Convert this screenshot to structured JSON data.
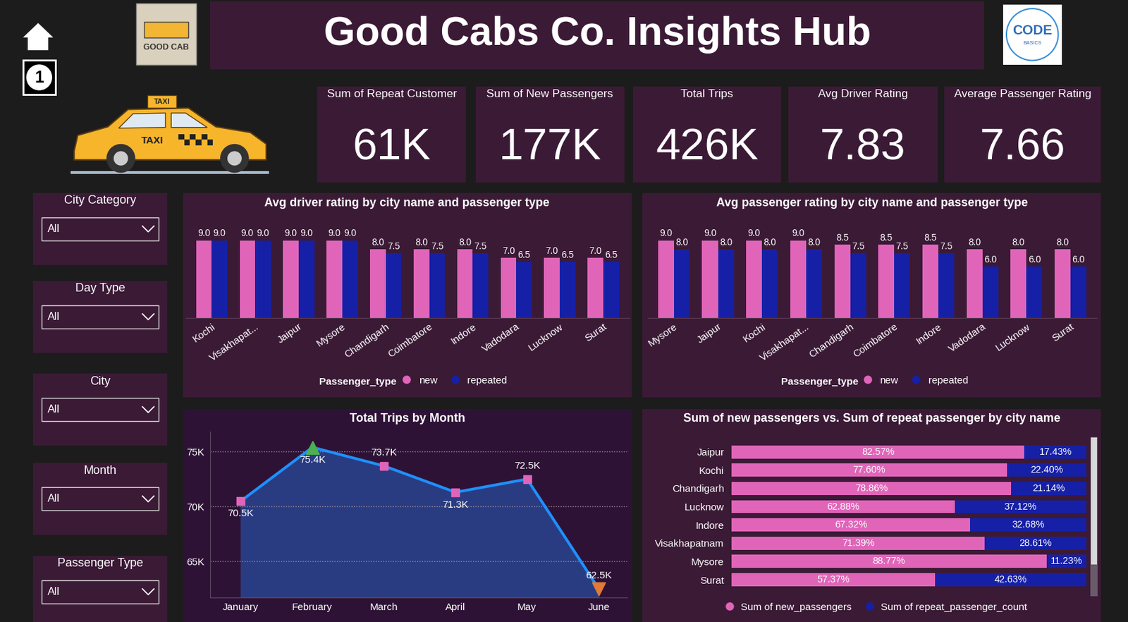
{
  "header": {
    "title": "Good Cabs Co. Insights Hub",
    "page": "1",
    "logo_left": "GOOD CAB",
    "logo_right": [
      "CODE",
      "BASICS"
    ],
    "taxi_sign": "TAXI"
  },
  "kpis": [
    {
      "label": "Sum of Repeat Customer",
      "value": "61K"
    },
    {
      "label": "Sum of New Passengers",
      "value": "177K"
    },
    {
      "label": "Total Trips",
      "value": "426K"
    },
    {
      "label": "Avg Driver Rating",
      "value": "7.83"
    },
    {
      "label": "Average Passenger Rating",
      "value": "7.66"
    }
  ],
  "filters": [
    {
      "label": "City Category",
      "value": "All"
    },
    {
      "label": "Day Type",
      "value": "All"
    },
    {
      "label": "City",
      "value": "All"
    },
    {
      "label": "Month",
      "value": "All"
    },
    {
      "label": "Passenger Type",
      "value": "All"
    }
  ],
  "chart_data": [
    {
      "type": "bar",
      "title": "Avg driver rating by city name and passenger type",
      "categories": [
        "Kochi",
        "Visakhapat...",
        "Jaipur",
        "Mysore",
        "Chandigarh",
        "Coimbatore",
        "Indore",
        "Vadodara",
        "Lucknow",
        "Surat"
      ],
      "series": [
        {
          "name": "new",
          "color": "#e065b9",
          "values": [
            9,
            9,
            9,
            9,
            8,
            8,
            8,
            7,
            7,
            7
          ],
          "value_labels": [
            "9.0",
            "9.0",
            "9.0",
            "9.0",
            "8.0",
            "8.0",
            "8.0",
            "7.0",
            "7.0",
            "7.0"
          ]
        },
        {
          "name": "repeated",
          "color": "#1620a6",
          "values": [
            9,
            9,
            9,
            9,
            7.5,
            7.5,
            7.5,
            6.5,
            6.5,
            6.5
          ],
          "value_labels": [
            "9.0",
            "9.0",
            "9.0",
            "9.0",
            "7.5",
            "7.5",
            "7.5",
            "6.5",
            "6.5",
            "6.5"
          ]
        }
      ],
      "ylim": [
        0,
        11
      ],
      "tick_labels": "x",
      "data_labels": true,
      "legend": "lower center",
      "legend_title": "Passenger_type"
    },
    {
      "type": "bar",
      "title": "Avg passenger rating by city name and passenger type",
      "categories": [
        "Mysore",
        "Jaipur",
        "Kochi",
        "Visakhapat...",
        "Chandigarh",
        "Coimbatore",
        "Indore",
        "Vadodara",
        "Lucknow",
        "Surat"
      ],
      "series": [
        {
          "name": "new",
          "color": "#e065b9",
          "values": [
            9,
            9,
            9,
            9,
            8.5,
            8.5,
            8.5,
            8,
            8,
            8
          ],
          "value_labels": [
            "9.0",
            "9.0",
            "9.0",
            "9.0",
            "8.5",
            "8.5",
            "8.5",
            "8.0",
            "8.0",
            "8.0"
          ]
        },
        {
          "name": "repeated",
          "color": "#1620a6",
          "values": [
            8,
            8,
            8,
            8,
            7.5,
            7.5,
            7.5,
            6,
            6,
            6
          ],
          "value_labels": [
            "8.0",
            "8.0",
            "8.0",
            "8.0",
            "7.5",
            "7.5",
            "7.5",
            "6.0",
            "6.0",
            "6.0"
          ]
        }
      ],
      "ylim": [
        0,
        11
      ],
      "tick_labels": "x",
      "data_labels": true,
      "legend": "lower center",
      "legend_title": "Passenger_type"
    },
    {
      "type": "area",
      "title": "Total Trips by Month",
      "categories": [
        "January",
        "February",
        "March",
        "April",
        "May",
        "June"
      ],
      "values": [
        70500,
        75400,
        73700,
        71300,
        72500,
        62500
      ],
      "value_labels": [
        "70.5K",
        "75.4K",
        "73.7K",
        "71.3K",
        "72.5K",
        "62.5K"
      ],
      "color": "#1e90ff",
      "marker": "square",
      "colors": [
        "#e065b9",
        "#4caf50",
        "#e065b9",
        "#e065b9",
        "#e065b9",
        "#e07b39"
      ],
      "ylim": [
        61700,
        76800
      ],
      "yticks": [
        {
          "value": 65000,
          "label": "65K"
        },
        {
          "value": 70000,
          "label": "70K"
        },
        {
          "value": 75000,
          "label": "75K"
        }
      ],
      "grid": true,
      "data_labels": true
    },
    {
      "type": "bar",
      "orientation": "horizontal",
      "stacked": true,
      "title": "Sum of new passengers vs. Sum of repeat passenger by city name",
      "categories": [
        "Jaipur",
        "Kochi",
        "Chandigarh",
        "Lucknow",
        "Indore",
        "Visakhapatnam",
        "Mysore",
        "Surat"
      ],
      "series": [
        {
          "name": "Sum of new_passengers",
          "color": "#e065b9",
          "values": [
            82.57,
            77.6,
            78.86,
            62.88,
            67.32,
            71.39,
            88.77,
            57.37
          ],
          "value_labels": [
            "82.57%",
            "77.60%",
            "78.86%",
            "62.88%",
            "67.32%",
            "71.39%",
            "88.77%",
            "57.37%"
          ]
        },
        {
          "name": "Sum of repeat_passenger_count",
          "color": "#1620a6",
          "values": [
            17.43,
            22.4,
            21.14,
            37.12,
            32.68,
            28.61,
            11.23,
            42.63
          ],
          "value_labels": [
            "17.43%",
            "22.40%",
            "21.14%",
            "37.12%",
            "32.68%",
            "28.61%",
            "11.23%",
            "42.63%"
          ]
        }
      ],
      "xlim": [
        0,
        100
      ],
      "tick_labels": "y",
      "data_labels": true,
      "legend": "lower center"
    }
  ]
}
